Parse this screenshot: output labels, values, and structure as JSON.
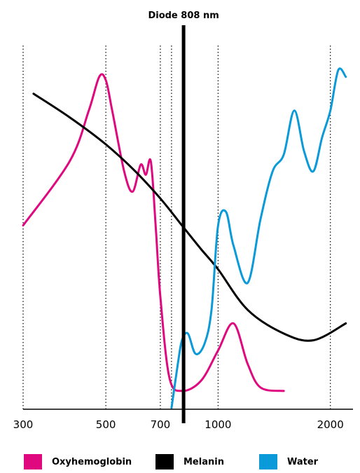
{
  "chart_data": {
    "type": "line",
    "title": "",
    "xlabel": "",
    "ylabel": "",
    "xscale": "log",
    "xlim": [
      300,
      2300
    ],
    "ylim": [
      0,
      100
    ],
    "grid": "vertical-dotted",
    "legend_placement": "bottom",
    "x_ticks": [
      300,
      500,
      700,
      1000,
      2000
    ],
    "x_tick_labels": [
      "300",
      "500",
      "700",
      "1000",
      "2000"
    ],
    "gridlines_x": [
      300,
      500,
      700,
      750,
      1000,
      2000
    ],
    "annotation": {
      "label": "Diode 808 nm",
      "x": 808
    },
    "series": [
      {
        "name": "Oxyhemoglobin",
        "color": "#e0087e",
        "x": [
          300,
          400,
          450,
          480,
          500,
          520,
          560,
          590,
          620,
          640,
          660,
          680,
          700,
          740,
          800,
          900,
          1000,
          1100,
          1200,
          1300,
          1500
        ],
        "y": [
          54,
          73,
          88,
          98,
          97,
          88,
          70,
          64,
          72,
          69,
          73,
          54,
          33,
          9,
          5,
          8,
          17,
          25,
          13,
          6,
          5
        ]
      },
      {
        "name": "Melanin",
        "color": "#000000",
        "x": [
          320,
          400,
          500,
          600,
          700,
          800,
          900,
          1000,
          1200,
          1500,
          1800,
          2200
        ],
        "y": [
          93,
          86,
          78,
          70,
          62,
          54,
          47,
          41,
          29,
          22,
          20,
          25
        ]
      },
      {
        "name": "Water",
        "color": "#0a9ad9",
        "x": [
          750,
          780,
          800,
          830,
          870,
          920,
          960,
          1000,
          1050,
          1100,
          1200,
          1300,
          1400,
          1500,
          1600,
          1700,
          1800,
          1900,
          2000,
          2100,
          2200
        ],
        "y": [
          0,
          13,
          20,
          22,
          16,
          19,
          29,
          54,
          58,
          48,
          37,
          56,
          70,
          75,
          88,
          76,
          70,
          80,
          88,
          100,
          98
        ]
      }
    ]
  }
}
